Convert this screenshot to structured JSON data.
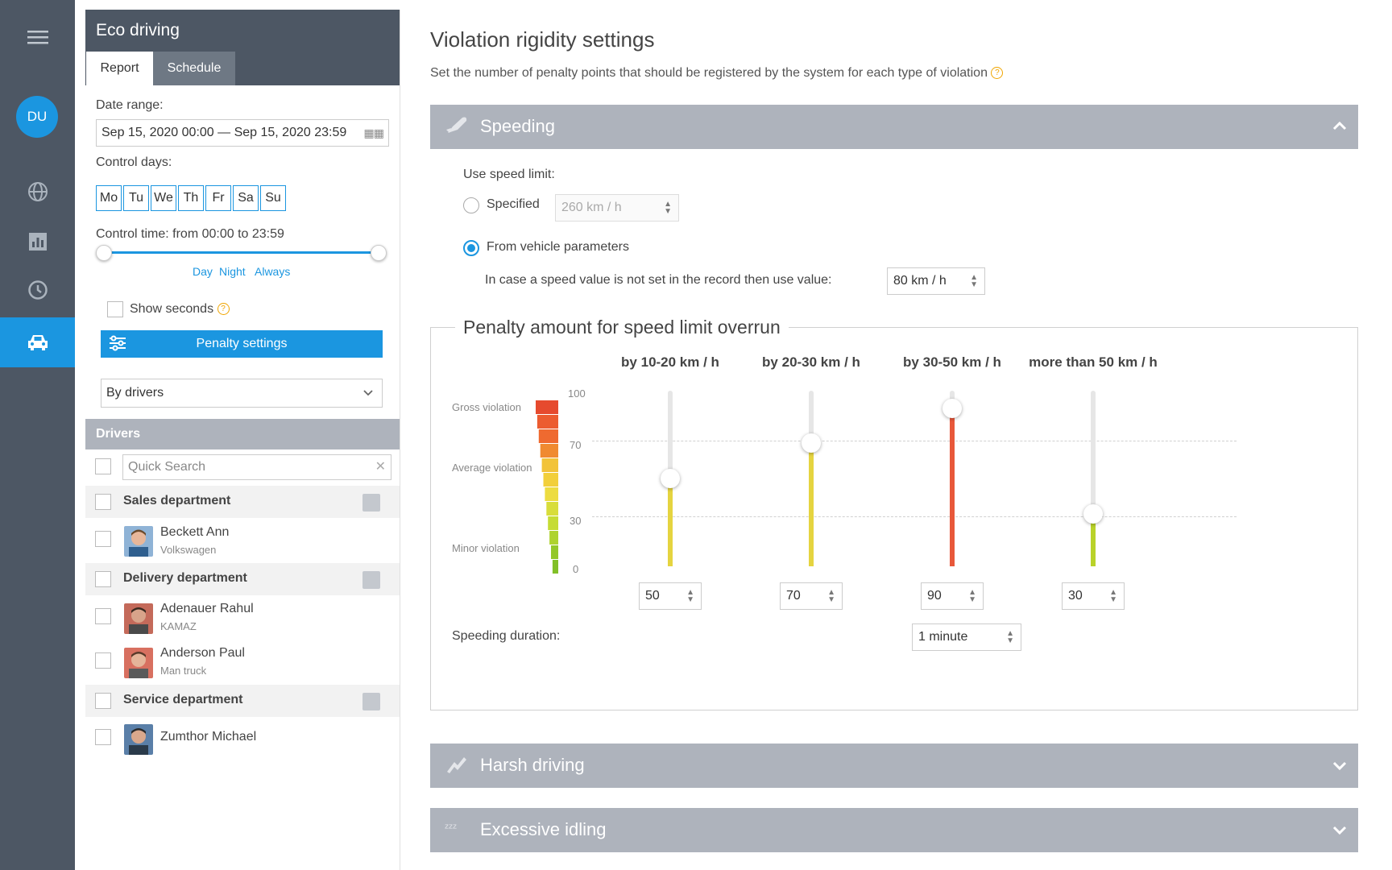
{
  "nav": {
    "avatar_initials": "DU",
    "icons": [
      "menu-icon",
      "globe-icon",
      "chart-icon",
      "clock-icon",
      "car-icon"
    ]
  },
  "panel": {
    "title": "Eco driving",
    "tabs": [
      "Report",
      "Schedule"
    ],
    "date_range_label": "Date range:",
    "date_range_value": "Sep 15, 2020 00:00 — Sep 15, 2020 23:59",
    "control_days_label": "Control days:",
    "days": [
      "Mo",
      "Tu",
      "We",
      "Th",
      "Fr",
      "Sa",
      "Su"
    ],
    "control_time_label": "Control time: from 00:00 to 23:59",
    "time_links": [
      "Day",
      "Night",
      "Always"
    ],
    "show_seconds_label": "Show seconds",
    "penalty_button": "Penalty settings",
    "group_by": "By drivers",
    "drivers_header": "Drivers",
    "search_placeholder": "Quick Search",
    "departments": [
      {
        "name": "Sales department"
      },
      {
        "name": "Delivery department"
      },
      {
        "name": "Service department"
      }
    ],
    "drivers": [
      {
        "name": "Beckett Ann",
        "vehicle": "Volkswagen"
      },
      {
        "name": "Adenauer Rahul",
        "vehicle": "KAMAZ"
      },
      {
        "name": "Anderson Paul",
        "vehicle": "Man truck"
      },
      {
        "name": "Zumthor Michael",
        "vehicle": ""
      }
    ]
  },
  "main": {
    "title": "Violation rigidity settings",
    "subtitle": "Set the number of penalty points that should be registered by the system for each type of violation",
    "sections": [
      {
        "title": "Speeding",
        "icon": "rocket-icon",
        "expanded": true
      },
      {
        "title": "Harsh driving",
        "icon": "swerve-icon",
        "expanded": false
      },
      {
        "title": "Excessive idling",
        "icon": "sleep-icon",
        "expanded": false
      }
    ],
    "speeding": {
      "use_speed_limit_label": "Use speed limit:",
      "specified_label": "Specified",
      "specified_value": "260  km / h",
      "from_vehicle_label": "From vehicle parameters",
      "selected": "From vehicle parameters",
      "fallback_label": "In case a speed value is not set in the record then use value:",
      "fallback_value": "80  km / h",
      "penalty_title": "Penalty amount for speed limit overrun",
      "scale_labels": {
        "gross": "Gross violation",
        "average": "Average violation",
        "minor": "Minor violation"
      },
      "scale_ticks": [
        "100",
        "70",
        "30",
        "0"
      ],
      "columns": [
        {
          "label": "by 10-20 km / h",
          "value": 50,
          "color": "#e5d440"
        },
        {
          "label": "by 20-30 km / h",
          "value": 70,
          "color": "#e5d440"
        },
        {
          "label": "by 30-50 km / h",
          "value": 90,
          "color": "#e8583a"
        },
        {
          "label": "more than 50 km / h",
          "value": 30,
          "color": "#b9d22a"
        }
      ],
      "duration_label": "Speeding duration:",
      "duration_value": "1  minute"
    }
  }
}
